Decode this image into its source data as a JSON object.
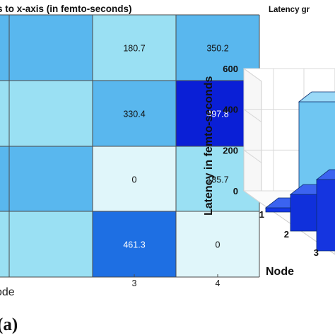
{
  "colors": {
    "scale": [
      "#e0f6fa",
      "#9ae0f3",
      "#59b7ee",
      "#1e6fe3",
      "#0a1fd6"
    ],
    "grid": "#4a4a4a",
    "wall_grid": "#d8d8d8"
  },
  "chart_data": [
    {
      "type": "heatmap",
      "title": "s to x-axis (in femto-seconds)",
      "xlabel": "ode",
      "x_tick_labels": [
        "3",
        "4"
      ],
      "columns": [
        {
          "label": "3",
          "values": [
            180.7,
            330.4,
            0,
            461.3
          ]
        },
        {
          "label": "4",
          "values": [
            350.2,
            497.8,
            185.7,
            0
          ]
        }
      ],
      "value_labels": [
        [
          "180.7",
          "350.2"
        ],
        [
          "330.4",
          "497.8"
        ],
        [
          "0",
          "185.7"
        ],
        [
          "461.3",
          "0"
        ]
      ],
      "panel_label": "(a)"
    },
    {
      "type": "bar3d",
      "title": "Latency gr",
      "ylabel": "Latency in femto-seconds",
      "xlabel": "Node",
      "zlim": [
        0,
        600
      ],
      "z_ticks": [
        "0",
        "200",
        "400",
        "600"
      ],
      "node_ticks": [
        "1",
        "2",
        "3"
      ],
      "bars": [
        {
          "node": 1,
          "value": 0
        },
        {
          "node": 2,
          "value": 180
        },
        {
          "node": 3,
          "value": 350
        },
        {
          "node": 3,
          "value": 500,
          "back": true
        }
      ]
    }
  ]
}
